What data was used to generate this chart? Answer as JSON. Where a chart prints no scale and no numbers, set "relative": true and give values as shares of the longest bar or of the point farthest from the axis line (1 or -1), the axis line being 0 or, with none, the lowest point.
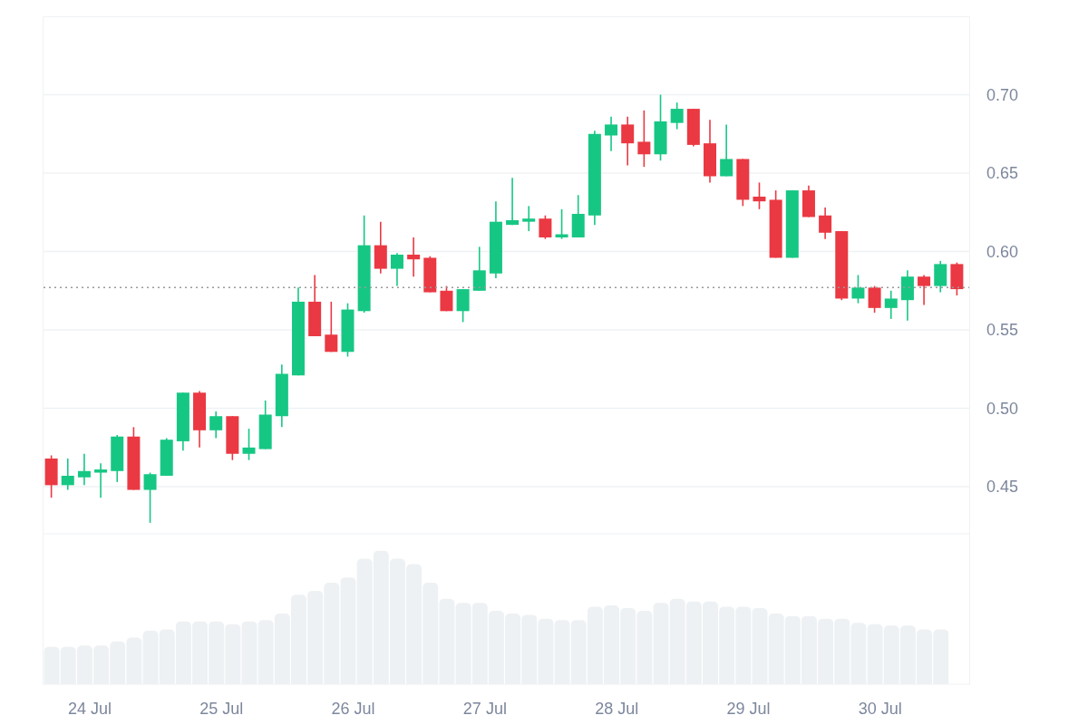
{
  "chart_data": [
    {
      "type": "candlestick",
      "x": [
        "--07-23T17:00",
        "--07-23T20:00",
        "--07-23T23:00",
        "--07-24T02:00",
        "--07-24T05:00",
        "--07-24T08:00",
        "--07-24T11:00",
        "--07-24T14:00",
        "--07-24T17:00",
        "--07-24T20:00",
        "--07-24T23:00",
        "--07-25T02:00",
        "--07-25T05:00",
        "--07-25T08:00",
        "--07-25T11:00",
        "--07-25T14:00",
        "--07-25T17:00",
        "--07-25T20:00",
        "--07-25T23:00",
        "--07-26T02:00",
        "--07-26T05:00",
        "--07-26T08:00",
        "--07-26T11:00",
        "--07-26T14:00",
        "--07-26T17:00",
        "--07-26T20:00",
        "--07-26T23:00",
        "--07-27T02:00",
        "--07-27T05:00",
        "--07-27T08:00",
        "--07-27T11:00",
        "--07-27T14:00",
        "--07-27T17:00",
        "--07-27T20:00",
        "--07-27T23:00",
        "--07-28T02:00",
        "--07-28T05:00",
        "--07-28T08:00",
        "--07-28T11:00",
        "--07-28T14:00",
        "--07-28T17:00",
        "--07-28T20:00",
        "--07-28T23:00",
        "--07-29T02:00",
        "--07-29T05:00",
        "--07-29T08:00",
        "--07-29T11:00",
        "--07-29T14:00",
        "--07-29T17:00",
        "--07-29T20:00",
        "--07-29T23:00",
        "--07-30T02:00",
        "--07-30T05:00",
        "--07-30T08:00",
        "--07-30T11:00",
        "--07-30T14:00"
      ],
      "ohlc": [
        [
          0.468,
          0.47,
          0.443,
          0.451
        ],
        [
          0.451,
          0.468,
          0.448,
          0.457
        ],
        [
          0.456,
          0.471,
          0.451,
          0.46
        ],
        [
          0.459,
          0.465,
          0.443,
          0.461
        ],
        [
          0.46,
          0.483,
          0.453,
          0.482
        ],
        [
          0.482,
          0.488,
          0.448,
          0.448
        ],
        [
          0.448,
          0.459,
          0.427,
          0.458
        ],
        [
          0.457,
          0.481,
          0.457,
          0.48
        ],
        [
          0.479,
          0.51,
          0.473,
          0.51
        ],
        [
          0.51,
          0.511,
          0.475,
          0.486
        ],
        [
          0.486,
          0.498,
          0.481,
          0.495
        ],
        [
          0.495,
          0.495,
          0.467,
          0.471
        ],
        [
          0.471,
          0.487,
          0.467,
          0.475
        ],
        [
          0.474,
          0.505,
          0.474,
          0.496
        ],
        [
          0.495,
          0.528,
          0.488,
          0.522
        ],
        [
          0.521,
          0.577,
          0.521,
          0.568
        ],
        [
          0.568,
          0.585,
          0.546,
          0.546
        ],
        [
          0.547,
          0.568,
          0.536,
          0.536
        ],
        [
          0.536,
          0.567,
          0.533,
          0.563
        ],
        [
          0.562,
          0.623,
          0.561,
          0.604
        ],
        [
          0.604,
          0.619,
          0.586,
          0.589
        ],
        [
          0.589,
          0.599,
          0.578,
          0.598
        ],
        [
          0.598,
          0.609,
          0.584,
          0.595
        ],
        [
          0.596,
          0.597,
          0.574,
          0.574
        ],
        [
          0.575,
          0.578,
          0.562,
          0.562
        ],
        [
          0.562,
          0.576,
          0.555,
          0.576
        ],
        [
          0.575,
          0.603,
          0.575,
          0.588
        ],
        [
          0.586,
          0.632,
          0.583,
          0.619
        ],
        [
          0.617,
          0.647,
          0.617,
          0.62
        ],
        [
          0.619,
          0.629,
          0.613,
          0.621
        ],
        [
          0.621,
          0.623,
          0.608,
          0.609
        ],
        [
          0.609,
          0.627,
          0.608,
          0.611
        ],
        [
          0.609,
          0.636,
          0.609,
          0.624
        ],
        [
          0.623,
          0.677,
          0.617,
          0.675
        ],
        [
          0.674,
          0.686,
          0.664,
          0.681
        ],
        [
          0.681,
          0.686,
          0.655,
          0.669
        ],
        [
          0.67,
          0.69,
          0.654,
          0.662
        ],
        [
          0.662,
          0.7,
          0.658,
          0.683
        ],
        [
          0.682,
          0.695,
          0.678,
          0.691
        ],
        [
          0.691,
          0.691,
          0.667,
          0.668
        ],
        [
          0.669,
          0.684,
          0.644,
          0.648
        ],
        [
          0.648,
          0.681,
          0.648,
          0.659
        ],
        [
          0.659,
          0.659,
          0.629,
          0.633
        ],
        [
          0.635,
          0.644,
          0.627,
          0.632
        ],
        [
          0.633,
          0.639,
          0.596,
          0.596
        ],
        [
          0.596,
          0.639,
          0.596,
          0.639
        ],
        [
          0.639,
          0.642,
          0.622,
          0.622
        ],
        [
          0.623,
          0.628,
          0.608,
          0.612
        ],
        [
          0.613,
          0.613,
          0.569,
          0.57
        ],
        [
          0.57,
          0.585,
          0.567,
          0.577
        ],
        [
          0.577,
          0.578,
          0.561,
          0.564
        ],
        [
          0.564,
          0.575,
          0.557,
          0.57
        ],
        [
          0.569,
          0.588,
          0.556,
          0.584
        ],
        [
          0.584,
          0.585,
          0.566,
          0.578
        ],
        [
          0.578,
          0.594,
          0.574,
          0.592
        ],
        [
          0.592,
          0.593,
          0.572,
          0.576
        ]
      ],
      "colors": [
        "#ea3943",
        "#16c784",
        "#16c784",
        "#16c784",
        "#16c784",
        "#ea3943",
        "#16c784",
        "#16c784",
        "#16c784",
        "#ea3943",
        "#16c784",
        "#ea3943",
        "#16c784",
        "#16c784",
        "#16c784",
        "#16c784",
        "#ea3943",
        "#ea3943",
        "#16c784",
        "#16c784",
        "#ea3943",
        "#16c784",
        "#ea3943",
        "#ea3943",
        "#ea3943",
        "#16c784",
        "#16c784",
        "#16c784",
        "#16c784",
        "#16c784",
        "#ea3943",
        "#16c784",
        "#16c784",
        "#16c784",
        "#16c784",
        "#ea3943",
        "#ea3943",
        "#16c784",
        "#16c784",
        "#ea3943",
        "#ea3943",
        "#16c784",
        "#ea3943",
        "#ea3943",
        "#ea3943",
        "#16c784",
        "#ea3943",
        "#ea3943",
        "#ea3943",
        "#16c784",
        "#ea3943",
        "#16c784",
        "#16c784",
        "#ea3943",
        "#16c784",
        "#ea3943"
      ],
      "xlim": [
        "--07-23T15:24",
        "--07-30T16:24"
      ],
      "ylim": [
        0.42,
        0.75
      ],
      "yticks": [
        {
          "value": 0.45,
          "label": "0.45"
        },
        {
          "value": 0.5,
          "label": "0.50"
        },
        {
          "value": 0.55,
          "label": "0.55"
        },
        {
          "value": 0.6,
          "label": "0.60"
        },
        {
          "value": 0.65,
          "label": "0.65"
        },
        {
          "value": 0.7,
          "label": "0.70"
        }
      ],
      "grid": "y",
      "tick_labels": "y",
      "ref_lines": [
        {
          "axis": "y",
          "value": 0.577,
          "color": "#999999",
          "line_style": "dotted"
        }
      ]
    },
    {
      "type": "bar",
      "relative": true,
      "color": "#eef1f4",
      "x": [
        "--07-23T17:00",
        "--07-23T20:00",
        "--07-23T23:00",
        "--07-24T02:00",
        "--07-24T05:00",
        "--07-24T08:00",
        "--07-24T11:00",
        "--07-24T14:00",
        "--07-24T17:00",
        "--07-24T20:00",
        "--07-24T23:00",
        "--07-25T02:00",
        "--07-25T05:00",
        "--07-25T08:00",
        "--07-25T11:00",
        "--07-25T14:00",
        "--07-25T17:00",
        "--07-25T20:00",
        "--07-25T23:00",
        "--07-26T02:00",
        "--07-26T05:00",
        "--07-26T08:00",
        "--07-26T11:00",
        "--07-26T14:00",
        "--07-26T17:00",
        "--07-26T20:00",
        "--07-26T23:00",
        "--07-27T02:00",
        "--07-27T05:00",
        "--07-27T08:00",
        "--07-27T11:00",
        "--07-27T14:00",
        "--07-27T17:00",
        "--07-27T20:00",
        "--07-27T23:00",
        "--07-28T02:00",
        "--07-28T05:00",
        "--07-28T08:00",
        "--07-28T11:00",
        "--07-28T14:00",
        "--07-28T17:00",
        "--07-28T20:00",
        "--07-28T23:00",
        "--07-29T02:00",
        "--07-29T05:00",
        "--07-29T08:00",
        "--07-29T11:00",
        "--07-29T14:00",
        "--07-29T17:00",
        "--07-29T20:00",
        "--07-29T23:00",
        "--07-30T02:00",
        "--07-30T05:00",
        "--07-30T08:00",
        "--07-30T11:00"
      ],
      "values": [
        0.28,
        0.28,
        0.29,
        0.29,
        0.32,
        0.35,
        0.4,
        0.41,
        0.47,
        0.47,
        0.47,
        0.45,
        0.47,
        0.48,
        0.53,
        0.67,
        0.7,
        0.76,
        0.8,
        0.94,
        1,
        0.94,
        0.9,
        0.76,
        0.64,
        0.61,
        0.61,
        0.55,
        0.53,
        0.52,
        0.49,
        0.48,
        0.48,
        0.58,
        0.59,
        0.57,
        0.55,
        0.61,
        0.64,
        0.62,
        0.62,
        0.58,
        0.58,
        0.57,
        0.53,
        0.51,
        0.51,
        0.49,
        0.49,
        0.46,
        0.45,
        0.44,
        0.44,
        0.41,
        0.41
      ],
      "xlim": [
        "--07-23T15:24",
        "--07-30T16:24"
      ],
      "xticks": [
        {
          "value": "--07-24",
          "label": "24 Jul"
        },
        {
          "value": "--07-25",
          "label": "25 Jul"
        },
        {
          "value": "--07-26",
          "label": "26 Jul"
        },
        {
          "value": "--07-27",
          "label": "27 Jul"
        },
        {
          "value": "--07-28",
          "label": "28 Jul"
        },
        {
          "value": "--07-29",
          "label": "29 Jul"
        },
        {
          "value": "--07-30",
          "label": "30 Jul"
        }
      ],
      "tick_labels": "x"
    }
  ]
}
